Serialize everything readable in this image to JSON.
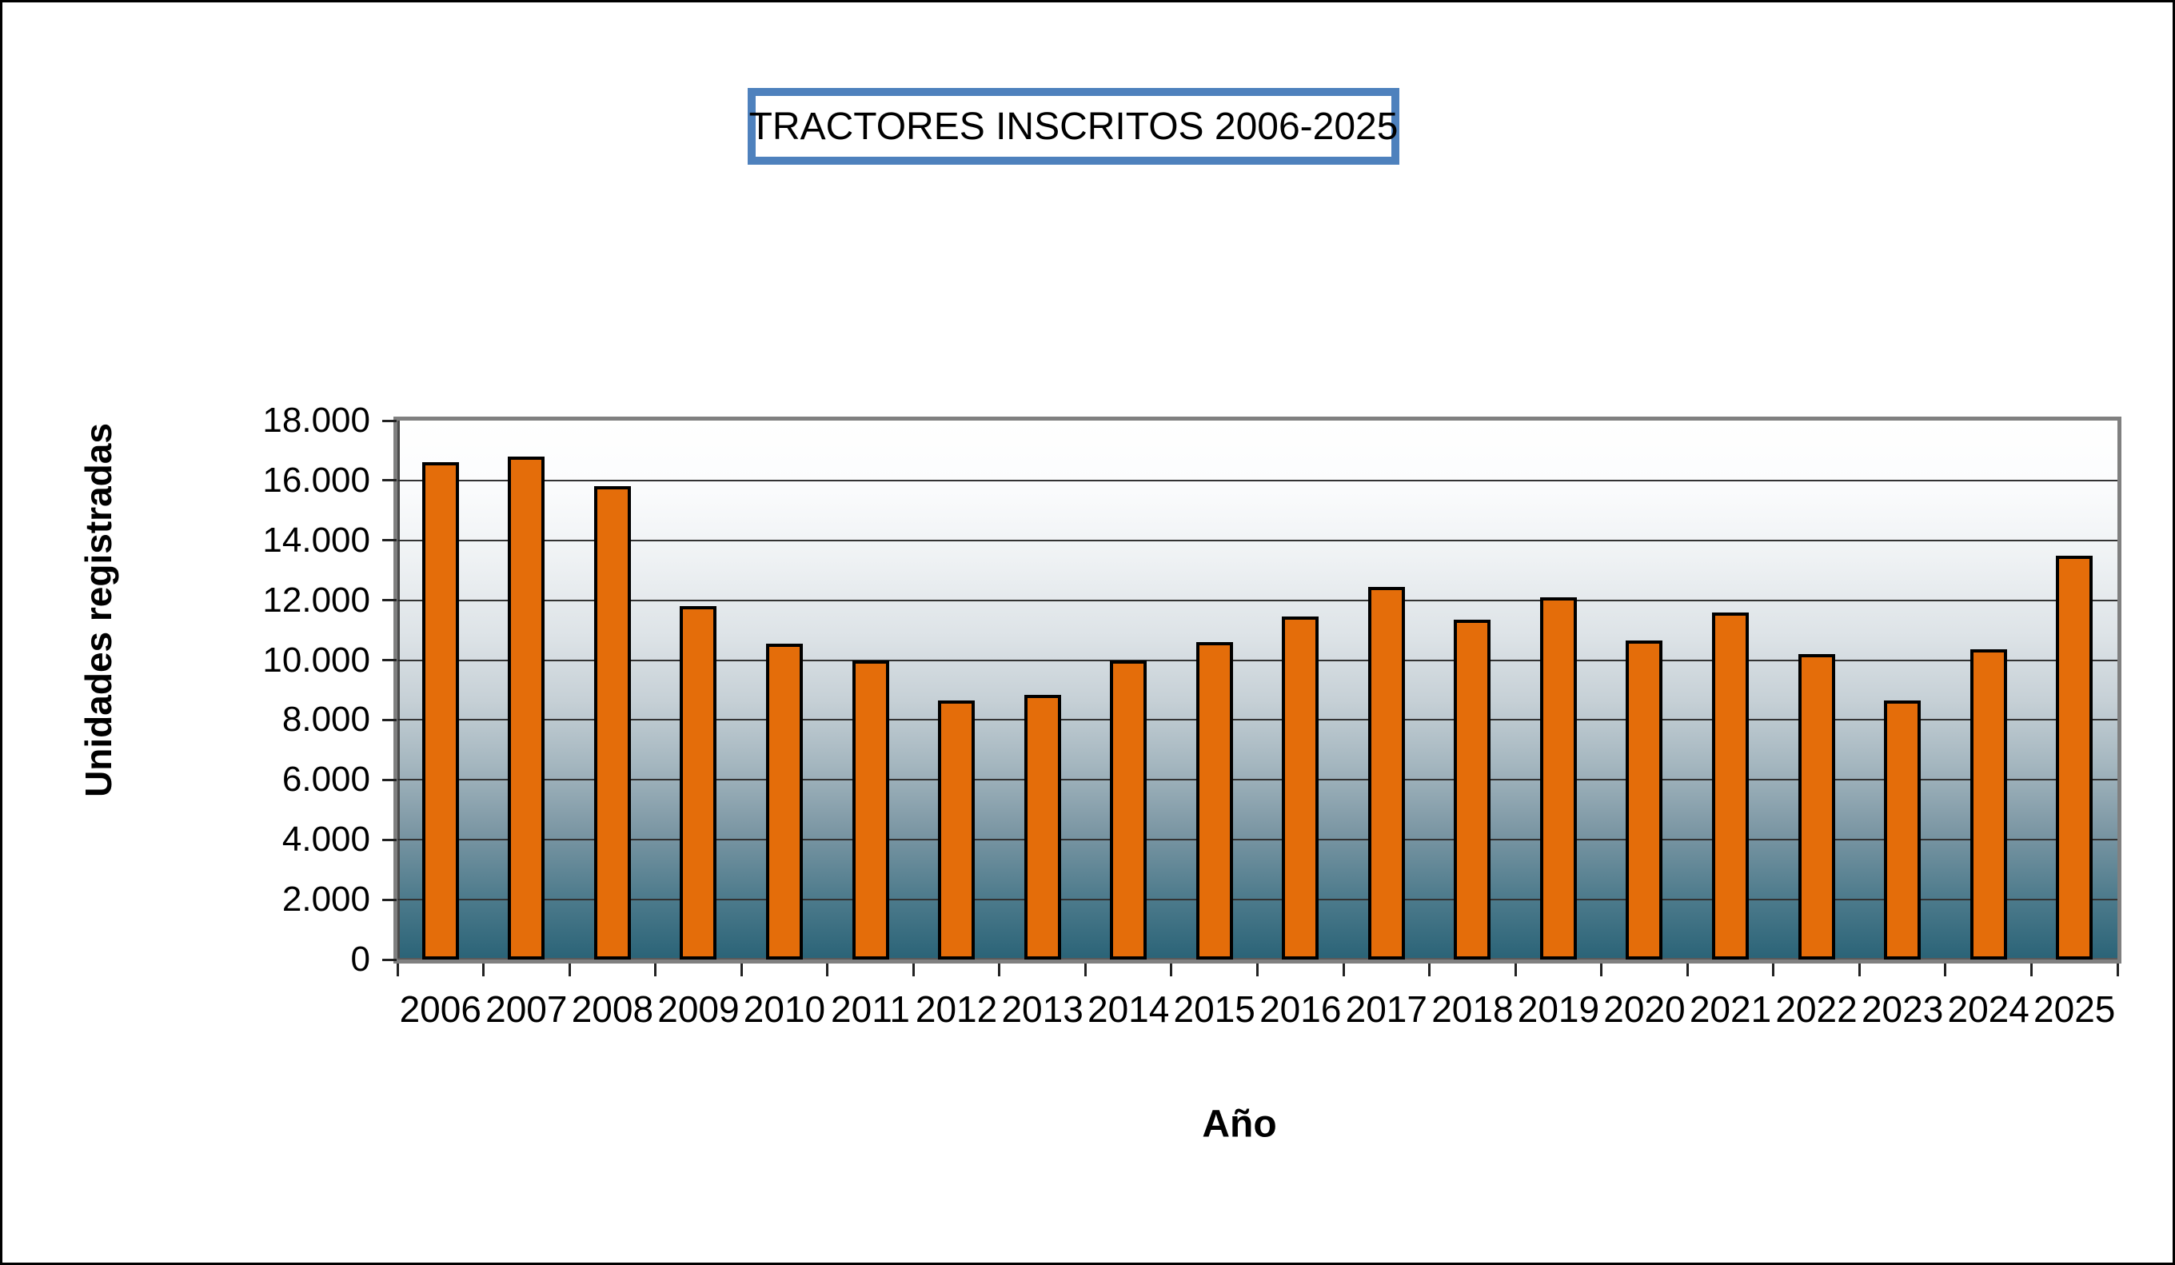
{
  "title": "TRACTORES INSCRITOS 2006-2025",
  "chart_data": {
    "type": "bar",
    "title": "TRACTORES INSCRITOS 2006-2025",
    "xlabel": "Año",
    "ylabel": "Unidades registradas",
    "categories": [
      "2006",
      "2007",
      "2008",
      "2009",
      "2010",
      "2011",
      "2012",
      "2013",
      "2014",
      "2015",
      "2016",
      "2017",
      "2018",
      "2019",
      "2020",
      "2021",
      "2022",
      "2023",
      "2024",
      "2025"
    ],
    "values": [
      16600,
      16800,
      15800,
      11800,
      10550,
      10000,
      8650,
      8850,
      10000,
      10600,
      11450,
      12450,
      11350,
      12100,
      10650,
      11600,
      10200,
      8650,
      10350,
      13500
    ],
    "ylim": [
      0,
      18000
    ],
    "y_tick_interval": 2000,
    "y_tick_labels": [
      "0",
      "2.000",
      "4.000",
      "6.000",
      "8.000",
      "10.000",
      "12.000",
      "14.000",
      "16.000",
      "18.000"
    ],
    "grid": "horizontal",
    "legend": "none",
    "colors": {
      "bar_fill": "#e46d0a",
      "bar_border": "#000000",
      "title_box_border": "#4e81bd",
      "plot_border": "#808080",
      "gridline": "#333333",
      "gradient_top": "#ffffff",
      "gradient_bottom": "#2a6377"
    }
  }
}
